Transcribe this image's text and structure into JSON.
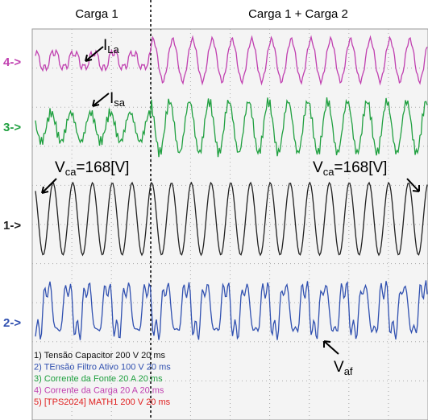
{
  "header": {
    "left": "Carga 1",
    "right": "Carga 1 + Carga 2"
  },
  "channels": [
    "4->",
    "3->",
    "1->",
    "2->"
  ],
  "annotations": {
    "i_la": {
      "main": "I",
      "sub": "La"
    },
    "i_sa": {
      "main": "I",
      "sub": "sa"
    },
    "v_ca_left": {
      "main": "V",
      "sub": "ca",
      "rest": "=168[V]"
    },
    "v_ca_right": {
      "main": "V",
      "sub": "ca",
      "rest": "=168[V]"
    },
    "v_af": {
      "main": "V",
      "sub": "af"
    }
  },
  "legend": [
    "1) Tensão Capacitor  200  V   20 ms",
    "2) TEnsão Filtro Ativo  100  V   20 ms",
    "3) Corrente da Fonte  20  A   20 ms",
    "4) Corrente da Carga  20  A   20 ms",
    "5) [TPS2024] MATH1  200  V   20 ms"
  ]
}
